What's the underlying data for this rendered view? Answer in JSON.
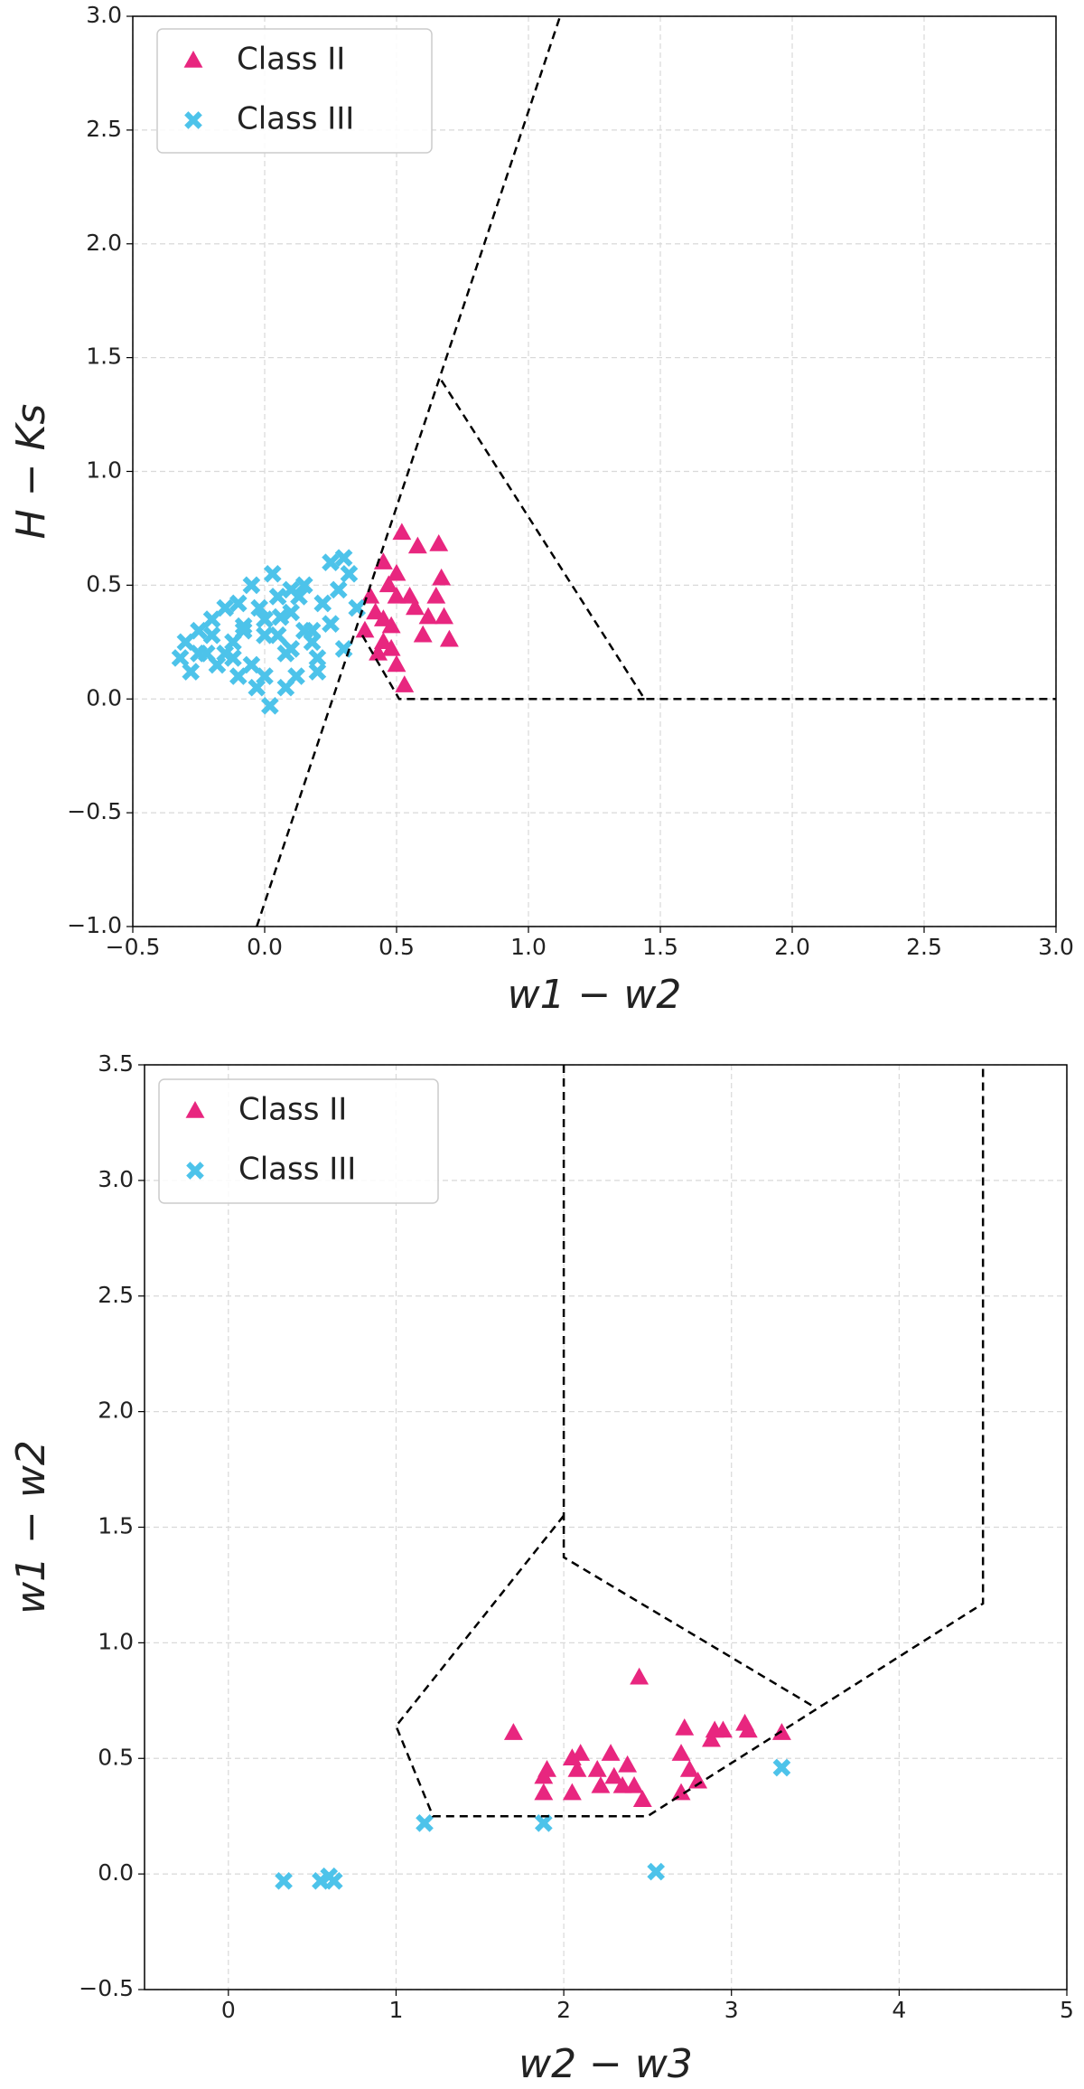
{
  "chart_data": [
    {
      "type": "scatter",
      "xlabel": "w1 − w2",
      "ylabel": "H − Ks",
      "grid": true,
      "legend": "upper left",
      "xlim": [
        -0.5,
        3.0
      ],
      "ylim": [
        -1.0,
        3.0
      ],
      "xticks": [
        {
          "value": -0.5,
          "label": "−0.5"
        },
        {
          "value": 0,
          "label": "0.0"
        },
        0.5,
        {
          "value": 1,
          "label": "1.0"
        },
        1.5,
        {
          "value": 2,
          "label": "2.0"
        },
        2.5,
        {
          "value": 3,
          "label": "3.0"
        }
      ],
      "yticks": [
        {
          "value": -1,
          "label": "−1.0"
        },
        {
          "value": -0.5,
          "label": "−0.5"
        },
        {
          "value": 0,
          "label": "0.0"
        },
        0.5,
        {
          "value": 1,
          "label": "1.0"
        },
        1.5,
        {
          "value": 2,
          "label": "2.0"
        },
        2.5,
        {
          "value": 3,
          "label": "3.0"
        }
      ],
      "series": [
        {
          "name": "Class II",
          "color": "#e8267f",
          "marker": "triangle",
          "x": [
            0.38,
            0.4,
            0.42,
            0.45,
            0.45,
            0.47,
            0.48,
            0.5,
            0.5,
            0.52,
            0.53,
            0.55,
            0.57,
            0.58,
            0.6,
            0.62,
            0.65,
            0.67,
            0.68,
            0.7,
            0.66,
            0.48,
            0.43,
            0.5,
            0.45
          ],
          "y": [
            0.3,
            0.45,
            0.38,
            0.6,
            0.25,
            0.5,
            0.32,
            0.15,
            0.55,
            0.73,
            0.06,
            0.45,
            0.4,
            0.67,
            0.28,
            0.36,
            0.45,
            0.53,
            0.36,
            0.26,
            0.68,
            0.22,
            0.2,
            0.45,
            0.35
          ]
        },
        {
          "name": "Class III",
          "color": "#4dc3ea",
          "marker": "x",
          "x": [
            -0.32,
            -0.3,
            -0.28,
            -0.25,
            -0.22,
            -0.2,
            -0.18,
            -0.15,
            -0.12,
            -0.1,
            -0.08,
            -0.05,
            -0.03,
            0.0,
            0.02,
            0.05,
            0.08,
            0.1,
            0.12,
            0.15,
            0.18,
            0.2,
            0.22,
            0.25,
            0.28,
            0.3,
            0.32,
            0.35,
            -0.15,
            -0.1,
            -0.05,
            0.0,
            0.05,
            0.1,
            0.15,
            0.2,
            -0.2,
            -0.25,
            0.0,
            0.03,
            -0.08,
            0.08,
            0.13,
            -0.02,
            0.06,
            0.25,
            0.3,
            0.18,
            -0.12,
            0.1
          ],
          "y": [
            0.18,
            0.25,
            0.12,
            0.3,
            0.2,
            0.35,
            0.15,
            0.4,
            0.25,
            0.1,
            0.32,
            0.5,
            0.05,
            0.28,
            -0.03,
            0.45,
            0.2,
            0.38,
            0.1,
            0.5,
            0.3,
            0.18,
            0.42,
            0.33,
            0.48,
            0.22,
            0.55,
            0.4,
            0.2,
            0.42,
            0.15,
            0.35,
            0.28,
            0.22,
            0.3,
            0.12,
            0.28,
            0.2,
            0.1,
            0.55,
            0.3,
            0.05,
            0.45,
            0.4,
            0.36,
            0.6,
            0.62,
            0.25,
            0.18,
            0.48
          ]
        }
      ],
      "lines": [
        {
          "x": [
            -0.03,
            1.12
          ],
          "y": [
            -1.0,
            3.0
          ]
        },
        {
          "x": [
            0.67,
            1.44,
            3.0
          ],
          "y": [
            1.4,
            0.0,
            0.0
          ]
        },
        {
          "x": [
            0.37,
            0.51,
            1.44
          ],
          "y": [
            0.28,
            0.0,
            0.0
          ]
        }
      ]
    },
    {
      "type": "scatter",
      "xlabel": "w2 − w3",
      "ylabel": "w1 − w2",
      "grid": true,
      "legend": "upper left",
      "xlim": [
        -0.5,
        5.0
      ],
      "ylim": [
        -0.5,
        3.5
      ],
      "xticks": [
        0,
        1,
        2,
        3,
        4,
        5
      ],
      "yticks": [
        {
          "value": -0.5,
          "label": "−0.5"
        },
        {
          "value": 0,
          "label": "0.0"
        },
        0.5,
        {
          "value": 1,
          "label": "1.0"
        },
        1.5,
        {
          "value": 2,
          "label": "2.0"
        },
        2.5,
        {
          "value": 3,
          "label": "3.0"
        },
        3.5
      ],
      "series": [
        {
          "name": "Class II",
          "color": "#e8267f",
          "marker": "triangle",
          "x": [
            1.7,
            1.88,
            1.88,
            1.9,
            2.05,
            2.05,
            2.08,
            2.1,
            2.2,
            2.22,
            2.28,
            2.3,
            2.35,
            2.38,
            2.42,
            2.45,
            2.47,
            2.7,
            2.7,
            2.72,
            2.75,
            2.8,
            2.88,
            2.9,
            2.95,
            3.08,
            3.1,
            3.3
          ],
          "y": [
            0.61,
            0.42,
            0.35,
            0.45,
            0.5,
            0.35,
            0.45,
            0.52,
            0.45,
            0.38,
            0.52,
            0.42,
            0.38,
            0.47,
            0.38,
            0.85,
            0.32,
            0.52,
            0.35,
            0.63,
            0.45,
            0.4,
            0.58,
            0.62,
            0.62,
            0.65,
            0.62,
            0.61
          ]
        },
        {
          "name": "Class III",
          "color": "#4dc3ea",
          "marker": "x",
          "x": [
            0.33,
            0.55,
            0.6,
            0.63,
            1.17,
            1.88,
            2.55,
            3.3
          ],
          "y": [
            -0.03,
            -0.03,
            -0.01,
            -0.03,
            0.22,
            0.22,
            0.01,
            0.46
          ]
        }
      ],
      "lines": [
        {
          "x": [
            2.0,
            2.0,
            3.5
          ],
          "y": [
            3.5,
            1.37,
            0.72
          ]
        },
        {
          "x": [
            2.0,
            1.0,
            1.22,
            2.5,
            4.5,
            4.5
          ],
          "y": [
            1.55,
            0.64,
            0.25,
            0.25,
            1.17,
            3.5
          ]
        }
      ]
    }
  ]
}
